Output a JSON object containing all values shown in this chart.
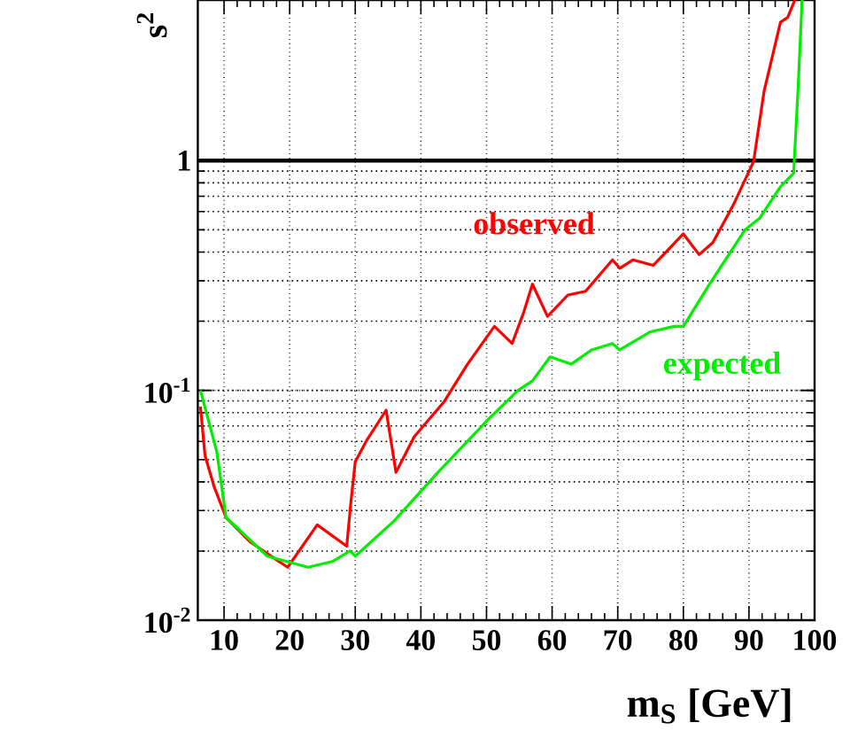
{
  "chart_data": {
    "type": "line",
    "xlabel": "m$_{S}$ [GeV]",
    "ylabel": "s$^{2}$",
    "log": "y",
    "grid": true,
    "marker": "none",
    "line_style": "solid",
    "xlim": [
      6,
      100
    ],
    "ylim": [
      0.01,
      5
    ],
    "xticks": [
      10,
      20,
      30,
      40,
      50,
      60,
      70,
      80,
      90,
      100
    ],
    "yticks": [
      {
        "value": 0.01,
        "label": "10$^{-2}$"
      },
      {
        "value": 0.1,
        "label": "10$^{-1}$"
      },
      1
    ],
    "ref_lines": [
      {
        "axis": "y",
        "value": 1,
        "color": "#000000"
      }
    ],
    "series": [
      {
        "name": "observed",
        "color": "#ff0000",
        "x": [
          6.4,
          7.1,
          8.5,
          10.3,
          13.9,
          18.4,
          19.7,
          24.2,
          28.7,
          29.3,
          30.0,
          31.8,
          34.7,
          36.2,
          39.0,
          43.5,
          47.1,
          51.2,
          53.9,
          55.7,
          57.0,
          59.3,
          62.4,
          65.1,
          69.2,
          70.3,
          72.3,
          75.4,
          80.0,
          82.4,
          84.5,
          87.6,
          90.7,
          92.3,
          94.8,
          95.9,
          97.0
        ],
        "values": [
          0.085,
          0.052,
          0.038,
          0.028,
          0.022,
          0.018,
          0.017,
          0.026,
          0.021,
          0.032,
          0.049,
          0.061,
          0.082,
          0.044,
          0.063,
          0.089,
          0.13,
          0.19,
          0.16,
          0.22,
          0.29,
          0.21,
          0.26,
          0.27,
          0.37,
          0.34,
          0.37,
          0.35,
          0.48,
          0.39,
          0.44,
          0.64,
          0.99,
          2.0,
          4.0,
          4.2,
          5.0
        ]
      },
      {
        "name": "expected",
        "color": "#00ee00",
        "x": [
          6.4,
          8.9,
          10.3,
          16.6,
          22.8,
          26.5,
          29.2,
          30.0,
          35.9,
          42.6,
          50.3,
          54.8,
          57.0,
          59.7,
          62.9,
          66.0,
          69.2,
          70.3,
          75.0,
          78.6,
          80.0,
          84.0,
          89.4,
          91.6,
          94.8,
          96.8,
          97.5,
          98.1
        ],
        "values": [
          0.1,
          0.054,
          0.028,
          0.019,
          0.017,
          0.018,
          0.02,
          0.019,
          0.027,
          0.044,
          0.075,
          0.1,
          0.11,
          0.14,
          0.13,
          0.15,
          0.16,
          0.15,
          0.18,
          0.19,
          0.19,
          0.29,
          0.5,
          0.56,
          0.77,
          0.88,
          2.1,
          5.0
        ]
      }
    ]
  }
}
